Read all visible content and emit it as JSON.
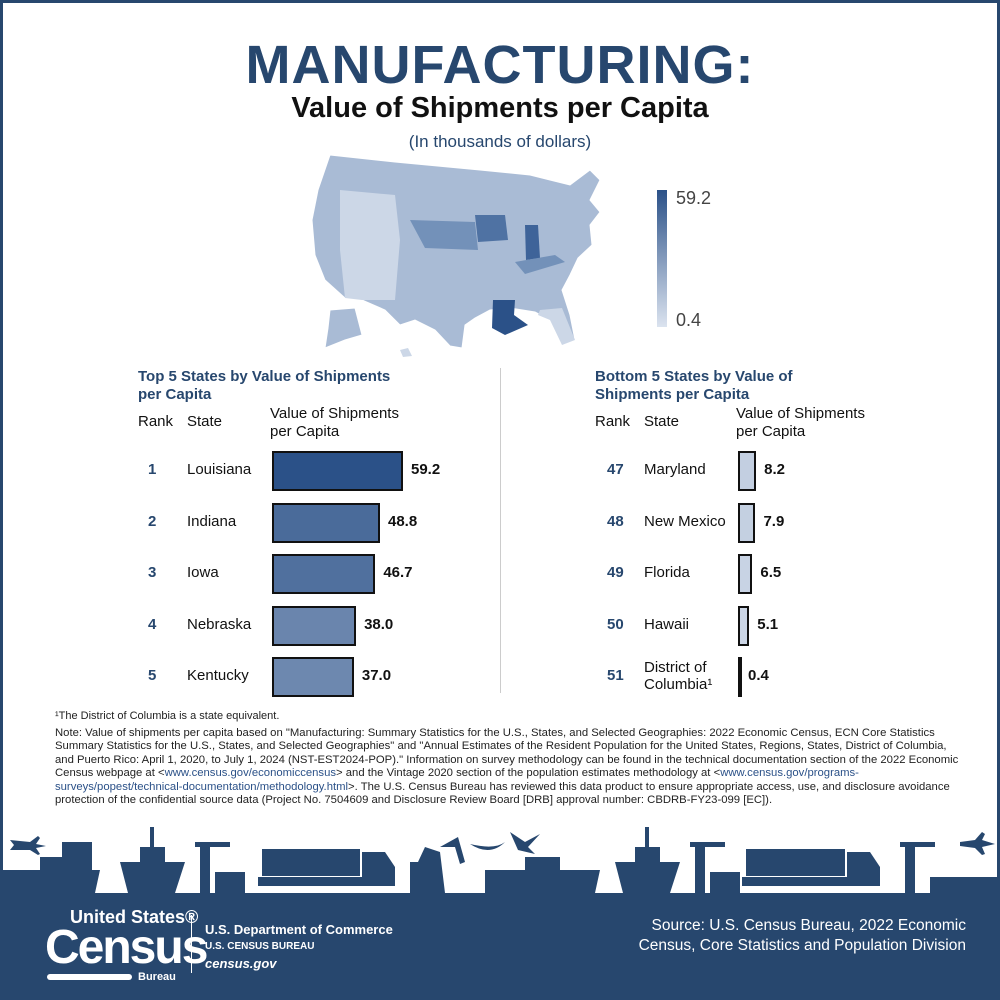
{
  "title": "MANUFACTURING:",
  "subtitle": "Value of Shipments per Capita",
  "units": "(In thousands of dollars)",
  "legend": {
    "max": "59.2",
    "min": "0.4",
    "color_high": "#2b5188",
    "color_low": "#dbe3ef"
  },
  "chart_data": [
    {
      "type": "bar",
      "orientation": "horizontal",
      "title": "Top 5 States by Value of Shipments per Capita",
      "headers": {
        "rank": "Rank",
        "state": "State",
        "value": "Value of Shipments per Capita"
      },
      "ranks": [
        "1",
        "2",
        "3",
        "4",
        "5"
      ],
      "categories": [
        "Louisiana",
        "Indiana",
        "Iowa",
        "Nebraska",
        "Kentucky"
      ],
      "values": [
        59.2,
        48.8,
        46.7,
        38.0,
        37.0
      ],
      "labels": [
        "59.2",
        "48.8",
        "46.7",
        "38.0",
        "37.0"
      ],
      "xlim": [
        0,
        59.2
      ]
    },
    {
      "type": "bar",
      "orientation": "horizontal",
      "title": "Bottom 5 States by Value of Shipments per Capita",
      "headers": {
        "rank": "Rank",
        "state": "State",
        "value": "Value of Shipments per Capita"
      },
      "ranks": [
        "47",
        "48",
        "49",
        "50",
        "51"
      ],
      "categories": [
        "Maryland",
        "New Mexico",
        "Florida",
        "Hawaii",
        "District of Columbia¹"
      ],
      "values": [
        8.2,
        7.9,
        6.5,
        5.1,
        0.4
      ],
      "labels": [
        "8.2",
        "7.9",
        "6.5",
        "5.1",
        "0.4"
      ],
      "xlim": [
        0,
        59.2
      ]
    }
  ],
  "footnote": "¹The District of Columbia is a state equivalent.",
  "note": {
    "part1": "Note: Value of shipments per capita based on \"Manufacturing: Summary Statistics for the U.S., States, and Selected Geographies: 2022 Economic Census, ECN Core Statistics Summary Statistics for the U.S., States, and Selected Geographies\" and \"Annual Estimates of the Resident Population for the United States, Regions, States, District of Columbia, and Puerto Rico: April 1, 2020, to July 1, 2024 (NST-EST2024-POP).\" Information on survey methodology can be found in the technical documentation section of the 2022 Economic Census webpage at <",
    "link1": "www.census.gov/economiccensus",
    "part2": "> and the Vintage 2020 section of the population estimates methodology at <",
    "link2": "www.census.gov/programs-surveys/popest/technical-documentation/methodology.html",
    "part3": ">. The U.S. Census Bureau has reviewed this data product to ensure appropriate access, use, and disclosure avoidance protection of the confidential source data (Project No. 7504609 and Disclosure Review Board [DRB] approval number: CBDRB-FY23-099 [EC])."
  },
  "footer": {
    "logo_top": "United States®",
    "logo_main": "Census",
    "logo_bottom": "Bureau",
    "dept": "U.S. Department of Commerce",
    "bureau": "U.S. CENSUS BUREAU",
    "site": "census.gov",
    "source": "Source: U.S. Census Bureau, 2022 Economic Census, Core Statistics and Population Division",
    "color": "#27476e"
  }
}
